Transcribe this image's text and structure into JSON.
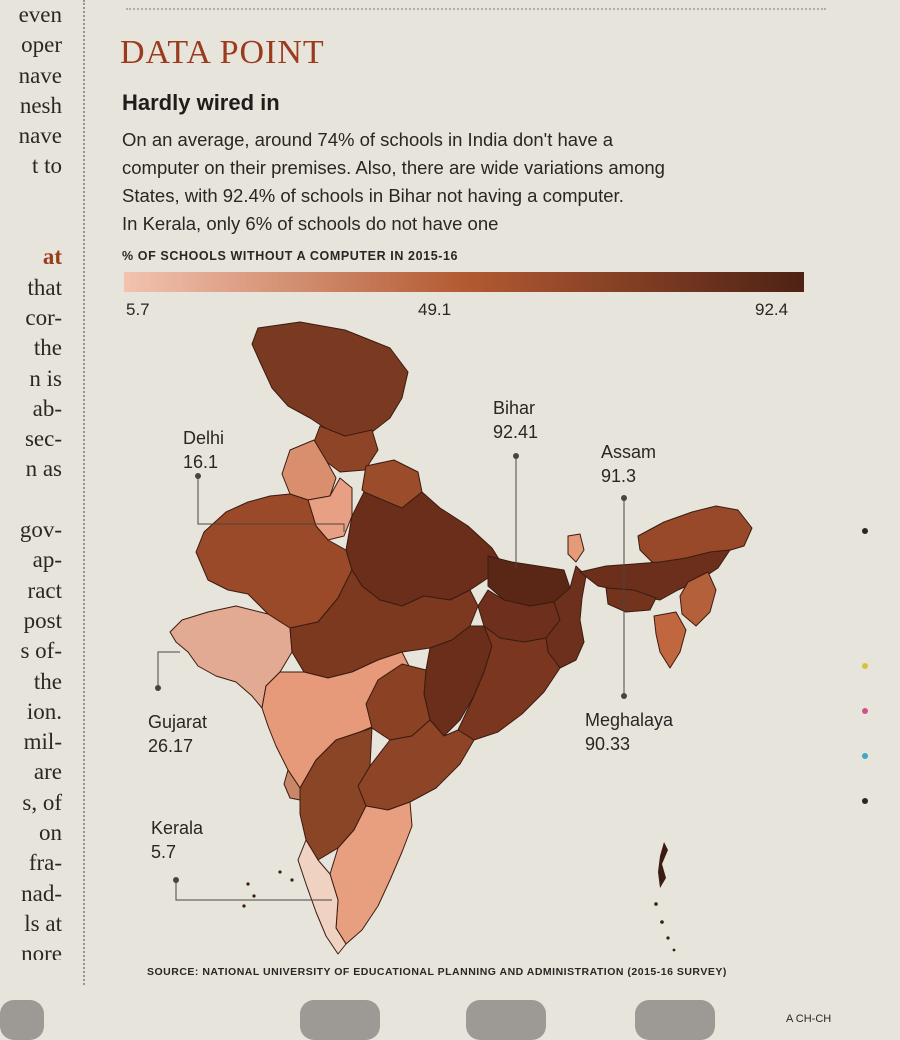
{
  "left_column": {
    "lines": [
      "even",
      "oper",
      "nave",
      "nesh",
      "nave",
      "t to",
      "",
      "",
      "at",
      "that",
      "cor-",
      "the",
      "n is",
      "ab-",
      "sec-",
      "n as",
      "",
      "gov-",
      "ap-",
      "ract",
      "post",
      "s of-",
      "the",
      "ion.",
      "mil-",
      "are",
      "s, of",
      "on",
      "fra-",
      "nad-",
      "ls at",
      "nore"
    ]
  },
  "kicker": "DATA POINT",
  "headline": "Hardly wired in",
  "deck": {
    "lines": [
      "On an average,  around 74% of schools in India don't have a",
      "computer on their premises. Also, there are wide variations among",
      "States, with  92.4% of schools in Bihar not having a computer.",
      "In Kerala, only 6% of schools do not have one"
    ]
  },
  "scale": {
    "title": "% OF SCHOOLS WITHOUT A COMPUTER IN 2015-16",
    "min_label": "5.7",
    "mid_label": "49.1",
    "max_label": "92.4",
    "color_min": "#f2c3b0",
    "color_mid": "#b35a32",
    "color_max": "#4e2215"
  },
  "callouts": {
    "delhi": {
      "name": "Delhi",
      "value": "16.1"
    },
    "bihar": {
      "name": "Bihar",
      "value": "92.41"
    },
    "assam": {
      "name": "Assam",
      "value": "91.3"
    },
    "gujarat": {
      "name": "Gujarat",
      "value": "26.17"
    },
    "meghalaya": {
      "name": "Meghalaya",
      "value": "90.33"
    },
    "kerala": {
      "name": "Kerala",
      "value": "5.7"
    }
  },
  "source": "SOURCE: NATIONAL UNIVERSITY OF EDUCATIONAL PLANNING AND ADMINISTRATION (2015-16 SURVEY)",
  "page_tag": "A CH-CH",
  "region_colors": {
    "jk": "#7a3a22",
    "himachal": "#8e4527",
    "punjab": "#d98f6e",
    "uttarakhand": "#9b4c2a",
    "haryana_delhi": "#e8a085",
    "rajasthan": "#9a4a28",
    "gujarat": "#e2aa92",
    "up": "#6b2e1a",
    "bihar": "#5a2616",
    "jharkhand": "#6e301c",
    "mp": "#7d3820",
    "chhattisgarh": "#6a2e1b",
    "odisha": "#7a361f",
    "west_bengal": "#6d301c",
    "maharashtra": "#e79a7a",
    "telangana": "#8a4124",
    "andhra": "#8e4427",
    "karnataka": "#8a4426",
    "goa": "#c9876a",
    "tamil_nadu": "#e89f80",
    "kerala": "#efd2c2",
    "sikkim": "#e59a7a",
    "northeast": "#98492a",
    "assam": "#6b2f1b",
    "meghalaya": "#74331d",
    "tripura_mizoram": "#c0673f",
    "manipur_nagaland": "#b4603a"
  }
}
